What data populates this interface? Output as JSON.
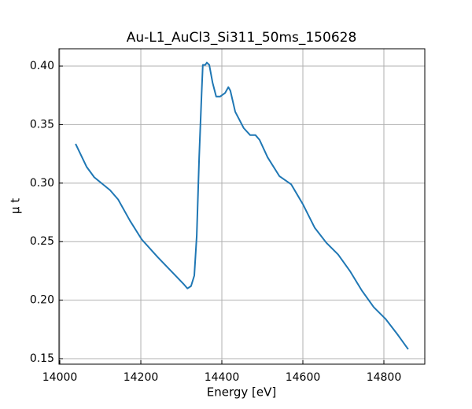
{
  "chart_data": {
    "type": "line",
    "title": "Au-L1_AuCl3_Si311_50ms_150628",
    "x_label": "Energy [eV]",
    "y_label": "μ t",
    "x": [
      14039,
      14066,
      14085,
      14124,
      14144,
      14173,
      14202,
      14241,
      14280,
      14305,
      14315,
      14324,
      14332,
      14338,
      14344,
      14350,
      14353,
      14359,
      14363,
      14369,
      14377,
      14386,
      14396,
      14408,
      14416,
      14421,
      14433,
      14454,
      14470,
      14483,
      14493,
      14513,
      14542,
      14571,
      14600,
      14629,
      14658,
      14687,
      14716,
      14746,
      14775,
      14804,
      14833,
      14860
    ],
    "series": [
      {
        "color": "#1f77b4",
        "values": [
          0.3335,
          0.314,
          0.305,
          0.294,
          0.286,
          0.268,
          0.252,
          0.237,
          0.223,
          0.214,
          0.21,
          0.212,
          0.221,
          0.255,
          0.322,
          0.376,
          0.401,
          0.401,
          0.403,
          0.401,
          0.386,
          0.374,
          0.374,
          0.377,
          0.382,
          0.379,
          0.361,
          0.347,
          0.341,
          0.341,
          0.337,
          0.322,
          0.306,
          0.299,
          0.282,
          0.262,
          0.249,
          0.239,
          0.225,
          0.208,
          0.194,
          0.184,
          0.171,
          0.158
        ]
      }
    ],
    "xlim": [
      13998,
      14901
    ],
    "ylim": [
      0.1453,
      0.4148
    ],
    "xticks": [
      14000,
      14200,
      14400,
      14600,
      14800
    ],
    "yticks": [
      {
        "value": 0.15,
        "label": "0.15"
      },
      {
        "value": 0.2,
        "label": "0.20"
      },
      {
        "value": 0.25,
        "label": "0.25"
      },
      {
        "value": 0.3,
        "label": "0.30"
      },
      {
        "value": 0.35,
        "label": "0.35"
      },
      {
        "value": 0.4,
        "label": "0.40"
      }
    ],
    "grid": true
  }
}
